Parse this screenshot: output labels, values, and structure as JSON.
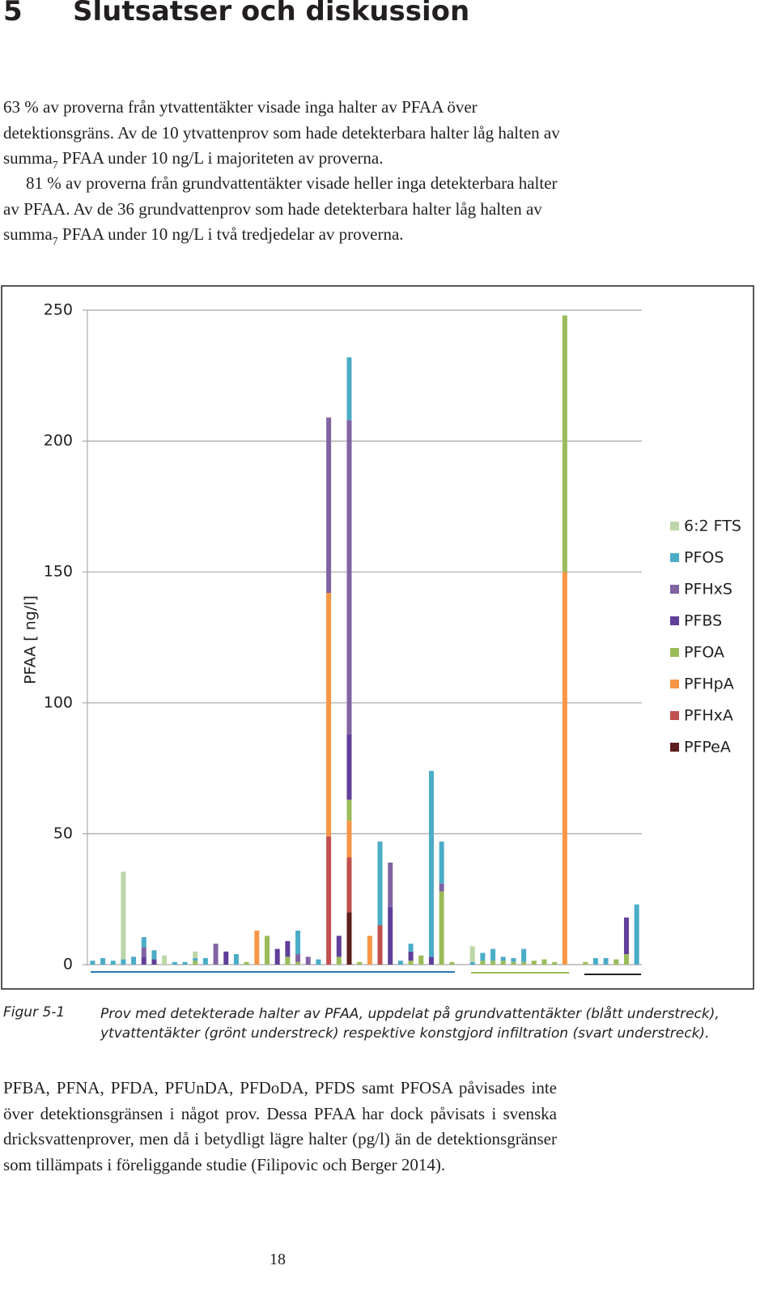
{
  "heading": {
    "number": "5",
    "title": "Slutsatser och diskussion"
  },
  "paragraphs": [
    {
      "before": "63 % av proverna från ytvattentäkter visade inga halter av PFAA över detektionsgräns. Av de 10 ytvattenprov som hade detekterbara halter låg halten av summa",
      "subscript": "7",
      "after": " PFAA under 10 ng/L i majoriteten av proverna."
    },
    {
      "before": "81 % av proverna från grundvattentäkter visade heller inga detekterbara halter av PFAA. Av de 36 grundvattenprov som hade detekterbara halter låg halten av summa",
      "subscript": "7",
      "after": " PFAA under 10 ng/L i två tredjedelar av proverna."
    },
    {
      "before": "PFBA, PFNA, PFDA, PFUnDA, PFDoDA, PFDS samt PFOSA påvisades inte över detektionsgränsen i något prov. Dessa PFAA har dock påvisats i svenska dricksvattenprover, men då i betydligt lägre halter (pg/l) än de detektionsgränser som tillämpats i föreliggande studie (Filipovic och Berger 2014)."
    }
  ],
  "chart_data": {
    "type": "bar",
    "stacked": true,
    "ylabel": "PFAA [ ng/l]",
    "ylim": [
      0,
      250
    ],
    "yticks": [
      0,
      50,
      100,
      150,
      200,
      250
    ],
    "grid": true,
    "legend": "right",
    "categories": [
      null,
      null,
      null,
      null,
      null,
      null,
      null,
      null,
      null,
      null,
      null,
      null,
      null,
      null,
      null,
      null,
      null,
      null,
      null,
      null,
      null,
      null,
      null,
      null,
      null,
      null,
      null,
      null,
      null,
      null,
      null,
      null,
      null,
      null,
      null,
      null,
      null,
      null,
      null,
      null,
      null,
      null,
      null,
      null,
      null,
      null,
      null,
      null,
      null,
      null,
      null,
      null,
      null,
      null
    ],
    "series": [
      {
        "name": "6:2 FTS",
        "color": "#bcd6a8",
        "values": [
          null,
          null,
          null,
          33.5,
          null,
          null,
          null,
          3.5,
          null,
          null,
          2.5,
          null,
          null,
          null,
          null,
          null,
          null,
          null,
          null,
          null,
          null,
          null,
          null,
          null,
          null,
          null,
          null,
          null,
          null,
          null,
          null,
          null,
          null,
          null,
          null,
          null,
          null,
          6,
          null,
          null,
          null,
          null,
          null,
          null,
          null,
          null,
          null,
          null,
          null,
          null,
          null,
          null,
          null,
          null
        ]
      },
      {
        "name": "PFOS",
        "color": "#4bacc6",
        "values": [
          1.5,
          2.5,
          1.5,
          2,
          3,
          4,
          3.5,
          null,
          1,
          1,
          1,
          2.5,
          null,
          null,
          4,
          null,
          null,
          null,
          null,
          null,
          9,
          null,
          2,
          null,
          null,
          24,
          null,
          null,
          32,
          null,
          1.5,
          3,
          null,
          71,
          16,
          null,
          null,
          1,
          3,
          4.5,
          1.5,
          1.5,
          5,
          null,
          null,
          null,
          null,
          null,
          null,
          2.5,
          2.5,
          null,
          null,
          23
        ]
      },
      {
        "name": "PFHxS",
        "color": "#8064a2",
        "values": [
          null,
          null,
          null,
          null,
          null,
          3.5,
          null,
          null,
          null,
          null,
          null,
          null,
          8,
          null,
          null,
          null,
          null,
          null,
          null,
          null,
          3,
          3,
          null,
          67,
          null,
          120,
          null,
          null,
          null,
          17,
          null,
          null,
          null,
          null,
          3,
          null,
          null,
          null,
          null,
          null,
          null,
          null,
          null,
          null,
          null,
          null,
          null,
          null,
          null,
          null,
          null,
          null,
          null,
          null
        ]
      },
      {
        "name": "PFBS",
        "color": "#5f3f99",
        "values": [
          null,
          null,
          null,
          null,
          null,
          3,
          2,
          null,
          null,
          null,
          null,
          null,
          null,
          5,
          null,
          null,
          null,
          null,
          6,
          6,
          null,
          null,
          null,
          null,
          8,
          25,
          null,
          null,
          null,
          22,
          null,
          3.5,
          null,
          3,
          null,
          null,
          null,
          null,
          null,
          null,
          null,
          null,
          null,
          null,
          null,
          null,
          null,
          null,
          null,
          null,
          null,
          null,
          14,
          null
        ]
      },
      {
        "name": "PFOA",
        "color": "#9bbb59",
        "values": [
          null,
          null,
          null,
          null,
          null,
          null,
          null,
          null,
          null,
          null,
          1.5,
          null,
          null,
          null,
          null,
          1,
          null,
          11,
          null,
          3,
          1,
          null,
          null,
          null,
          3,
          8,
          1,
          null,
          null,
          null,
          null,
          1.5,
          3.5,
          null,
          28,
          1,
          null,
          null,
          1.5,
          1.5,
          1.5,
          1,
          1,
          1.5,
          2,
          1,
          98,
          null,
          1,
          null,
          null,
          2,
          4,
          null
        ]
      },
      {
        "name": "PFHpA",
        "color": "#f79646",
        "values": [
          null,
          null,
          null,
          null,
          null,
          null,
          null,
          null,
          null,
          null,
          null,
          null,
          null,
          null,
          null,
          null,
          13,
          null,
          null,
          null,
          null,
          null,
          null,
          93,
          null,
          14,
          null,
          11,
          null,
          null,
          null,
          null,
          null,
          null,
          null,
          null,
          null,
          null,
          null,
          null,
          null,
          null,
          null,
          null,
          null,
          null,
          150,
          null,
          null,
          null,
          null,
          null,
          null,
          null
        ]
      },
      {
        "name": "PFHxA",
        "color": "#c0504d",
        "values": [
          null,
          null,
          null,
          null,
          null,
          null,
          null,
          null,
          null,
          null,
          null,
          null,
          null,
          null,
          null,
          null,
          null,
          null,
          null,
          null,
          null,
          null,
          null,
          49,
          null,
          21,
          null,
          null,
          15,
          null,
          null,
          null,
          null,
          null,
          null,
          null,
          null,
          null,
          null,
          null,
          null,
          null,
          null,
          null,
          null,
          null,
          null,
          null,
          null,
          null,
          null,
          null,
          null,
          null
        ]
      },
      {
        "name": "PFPeA",
        "color": "#5e1f1c",
        "values": [
          null,
          null,
          null,
          null,
          null,
          null,
          null,
          null,
          null,
          null,
          null,
          null,
          null,
          null,
          null,
          null,
          null,
          null,
          null,
          null,
          null,
          null,
          null,
          null,
          null,
          20,
          null,
          null,
          null,
          null,
          null,
          null,
          null,
          null,
          null,
          null,
          null,
          null,
          null,
          null,
          null,
          null,
          null,
          null,
          null,
          null,
          null,
          null,
          null,
          null,
          null,
          null,
          null,
          null
        ]
      }
    ]
  },
  "caption": {
    "label": "Figur 5-1",
    "text": "Prov med detekterade halter av PFAA, uppdelat på grundvattentäkter (blått understreck), ytvattentäkter (grönt understreck) respektive konstgjord infiltration (svart understreck)."
  },
  "page_number": "18"
}
